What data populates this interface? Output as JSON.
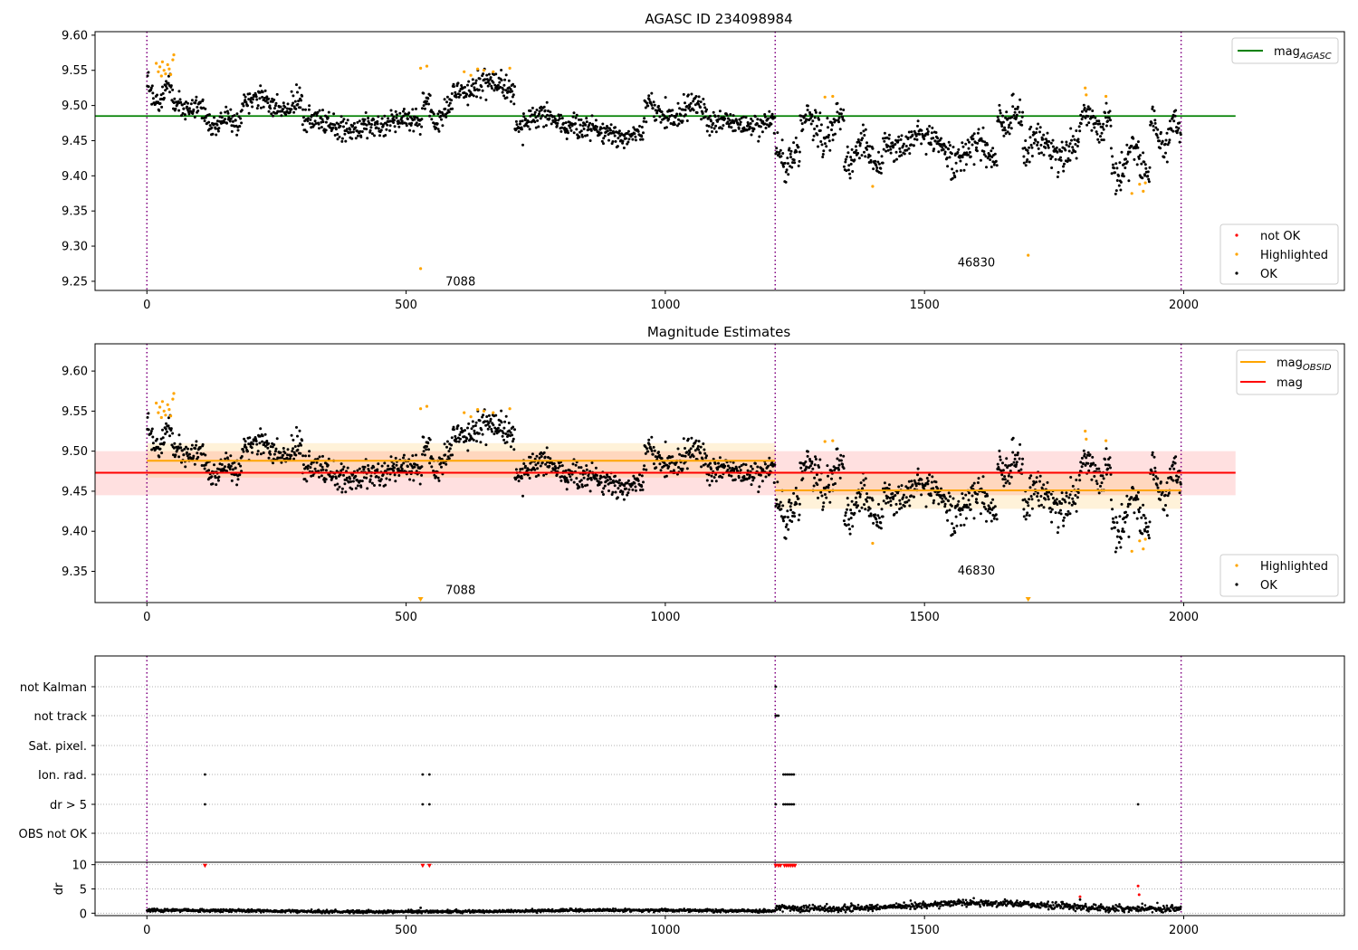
{
  "chart_data": [
    {
      "type": "scatter",
      "title": "AGASC ID 234098984",
      "xlim": [
        -100,
        2310
      ],
      "ylim": [
        9.237,
        9.605
      ],
      "x_ticks": [
        0,
        500,
        1000,
        1500,
        2000
      ],
      "x_tick_labels": [
        "0",
        "500",
        "1000",
        "1500",
        "2000"
      ],
      "y_ticks": [
        9.25,
        9.3,
        9.35,
        9.4,
        9.45,
        9.5,
        9.55,
        9.6
      ],
      "y_tick_labels": [
        "9.25",
        "9.30",
        "9.35",
        "9.40",
        "9.45",
        "9.50",
        "9.55",
        "9.60"
      ],
      "obs_boundaries": [
        0,
        1212,
        1995
      ],
      "obs_labels": [
        {
          "x": 605,
          "y": 9.244,
          "text": "7088"
        },
        {
          "x": 1600,
          "y": 9.271,
          "text": "46830"
        }
      ],
      "lines": [
        {
          "name": "mag",
          "subscript": "AGASC",
          "color": "#008000",
          "x": [
            -100,
            2100
          ],
          "y": [
            9.485,
            9.485
          ]
        }
      ],
      "legend_top": [
        {
          "name": "mag",
          "subscript": "AGASC",
          "kind": "line",
          "color": "#008000"
        }
      ],
      "legend_bottom": [
        {
          "name": "not OK",
          "kind": "marker",
          "color": "#ff0000"
        },
        {
          "name": "Highlighted",
          "kind": "marker",
          "color": "#ffa500"
        },
        {
          "name": "OK",
          "kind": "marker",
          "color": "#000000"
        }
      ],
      "highlighted_points": [
        [
          18,
          9.56
        ],
        [
          22,
          9.548
        ],
        [
          25,
          9.555
        ],
        [
          28,
          9.542
        ],
        [
          30,
          9.562
        ],
        [
          33,
          9.55
        ],
        [
          36,
          9.545
        ],
        [
          40,
          9.558
        ],
        [
          43,
          9.552
        ],
        [
          46,
          9.544
        ],
        [
          50,
          9.565
        ],
        [
          52,
          9.572
        ],
        [
          528,
          9.553
        ],
        [
          540,
          9.556
        ],
        [
          528,
          9.268
        ],
        [
          612,
          9.548
        ],
        [
          625,
          9.543
        ],
        [
          638,
          9.552
        ],
        [
          650,
          9.55
        ],
        [
          668,
          9.548
        ],
        [
          700,
          9.553
        ],
        [
          1308,
          9.512
        ],
        [
          1323,
          9.513
        ],
        [
          1400,
          9.385
        ],
        [
          1700,
          9.287
        ],
        [
          1810,
          9.525
        ],
        [
          1812,
          9.515
        ],
        [
          1850,
          9.513
        ],
        [
          1900,
          9.375
        ],
        [
          1915,
          9.388
        ],
        [
          1922,
          9.378
        ],
        [
          1926,
          9.39
        ]
      ],
      "ok_segments": [
        {
          "x0": 0,
          "x1": 50,
          "center": 9.515,
          "amp": 0.015,
          "noise": 0.008
        },
        {
          "x0": 50,
          "x1": 110,
          "center": 9.495,
          "amp": 0.006,
          "noise": 0.008
        },
        {
          "x0": 110,
          "x1": 180,
          "center": 9.475,
          "amp": 0.008,
          "noise": 0.009
        },
        {
          "x0": 180,
          "x1": 300,
          "center": 9.503,
          "amp": 0.01,
          "noise": 0.008
        },
        {
          "x0": 300,
          "x1": 530,
          "center": 9.473,
          "amp": 0.006,
          "noise": 0.009
        },
        {
          "x0": 530,
          "x1": 590,
          "center": 9.49,
          "amp": 0.015,
          "noise": 0.009
        },
        {
          "x0": 590,
          "x1": 710,
          "center": 9.527,
          "amp": 0.008,
          "noise": 0.009
        },
        {
          "x0": 710,
          "x1": 830,
          "center": 9.478,
          "amp": 0.009,
          "noise": 0.008
        },
        {
          "x0": 830,
          "x1": 960,
          "center": 9.462,
          "amp": 0.006,
          "noise": 0.008
        },
        {
          "x0": 960,
          "x1": 1080,
          "center": 9.492,
          "amp": 0.01,
          "noise": 0.009
        },
        {
          "x0": 1080,
          "x1": 1212,
          "center": 9.475,
          "amp": 0.006,
          "noise": 0.008
        },
        {
          "x0": 1213,
          "x1": 1260,
          "center": 9.425,
          "amp": 0.012,
          "noise": 0.012
        },
        {
          "x0": 1260,
          "x1": 1345,
          "center": 9.47,
          "amp": 0.02,
          "noise": 0.012
        },
        {
          "x0": 1345,
          "x1": 1420,
          "center": 9.43,
          "amp": 0.018,
          "noise": 0.012
        },
        {
          "x0": 1420,
          "x1": 1540,
          "center": 9.45,
          "amp": 0.01,
          "noise": 0.01
        },
        {
          "x0": 1540,
          "x1": 1640,
          "center": 9.435,
          "amp": 0.015,
          "noise": 0.012
        },
        {
          "x0": 1640,
          "x1": 1690,
          "center": 9.48,
          "amp": 0.012,
          "noise": 0.011
        },
        {
          "x0": 1690,
          "x1": 1800,
          "center": 9.44,
          "amp": 0.012,
          "noise": 0.011
        },
        {
          "x0": 1800,
          "x1": 1860,
          "center": 9.475,
          "amp": 0.012,
          "noise": 0.011
        },
        {
          "x0": 1860,
          "x1": 1935,
          "center": 9.42,
          "amp": 0.02,
          "noise": 0.012
        },
        {
          "x0": 1935,
          "x1": 1995,
          "center": 9.462,
          "amp": 0.018,
          "noise": 0.011
        }
      ]
    },
    {
      "type": "scatter",
      "title": "Magnitude Estimates",
      "xlim": [
        -100,
        2310
      ],
      "ylim": [
        9.311,
        9.634
      ],
      "x_ticks": [
        0,
        500,
        1000,
        1500,
        2000
      ],
      "x_tick_labels": [
        "0",
        "500",
        "1000",
        "1500",
        "2000"
      ],
      "y_ticks": [
        9.35,
        9.4,
        9.45,
        9.5,
        9.55,
        9.6
      ],
      "y_tick_labels": [
        "9.35",
        "9.40",
        "9.45",
        "9.50",
        "9.55",
        "9.60"
      ],
      "obs_boundaries": [
        0,
        1212,
        1995
      ],
      "obs_labels": [
        {
          "x": 605,
          "y": 9.322,
          "text": "7088"
        },
        {
          "x": 1600,
          "y": 9.346,
          "text": "46830"
        }
      ],
      "bands": [
        {
          "x0": -100,
          "x1": 2100,
          "y0": 9.445,
          "y1": 9.5,
          "color": "#ff0000",
          "opacity": 0.12
        },
        {
          "x0": 0,
          "x1": 1212,
          "y0": 9.467,
          "y1": 9.51,
          "color": "#ffa500",
          "opacity": 0.15
        },
        {
          "x0": 1212,
          "x1": 1995,
          "y0": 9.428,
          "y1": 9.475,
          "color": "#ffa500",
          "opacity": 0.15
        }
      ],
      "lines": [
        {
          "name": "mag",
          "color": "#ff0000",
          "x": [
            -100,
            2100
          ],
          "y": [
            9.473,
            9.473
          ]
        },
        {
          "name": "mag",
          "subscript": "OBSID",
          "color": "#ffa500",
          "x": [
            0,
            1212
          ],
          "y": [
            9.488,
            9.488
          ]
        },
        {
          "name": "mag",
          "subscript": "OBSID",
          "color": "#ffa500",
          "x": [
            1212,
            1995
          ],
          "y": [
            9.451,
            9.451
          ]
        }
      ],
      "legend_top": [
        {
          "name": "mag",
          "subscript": "OBSID",
          "kind": "line",
          "color": "#ffa500"
        },
        {
          "name": "mag",
          "kind": "line",
          "color": "#ff0000"
        }
      ],
      "legend_bottom": [
        {
          "name": "Highlighted",
          "kind": "marker",
          "color": "#ffa500"
        },
        {
          "name": "OK",
          "kind": "marker",
          "color": "#000000"
        }
      ],
      "offscale_markers": [
        {
          "x": 528,
          "color": "#ffa500"
        },
        {
          "x": 1700,
          "color": "#ffa500"
        }
      ],
      "highlighted_points": [
        [
          18,
          9.56
        ],
        [
          22,
          9.548
        ],
        [
          25,
          9.555
        ],
        [
          28,
          9.542
        ],
        [
          30,
          9.562
        ],
        [
          33,
          9.55
        ],
        [
          36,
          9.545
        ],
        [
          40,
          9.558
        ],
        [
          43,
          9.552
        ],
        [
          46,
          9.544
        ],
        [
          50,
          9.565
        ],
        [
          52,
          9.572
        ],
        [
          528,
          9.553
        ],
        [
          540,
          9.556
        ],
        [
          612,
          9.548
        ],
        [
          625,
          9.543
        ],
        [
          638,
          9.552
        ],
        [
          650,
          9.55
        ],
        [
          668,
          9.548
        ],
        [
          700,
          9.553
        ],
        [
          1308,
          9.512
        ],
        [
          1323,
          9.513
        ],
        [
          1400,
          9.385
        ],
        [
          1810,
          9.525
        ],
        [
          1812,
          9.515
        ],
        [
          1850,
          9.513
        ],
        [
          1900,
          9.375
        ],
        [
          1915,
          9.388
        ],
        [
          1922,
          9.378
        ],
        [
          1926,
          9.39
        ]
      ],
      "ok_segments": "same_as_panel_1"
    },
    {
      "type": "flags",
      "flag_rows": [
        "not Kalman",
        "not track",
        "Sat. pixel.",
        "Ion. rad.",
        "dr > 5",
        "OBS not OK"
      ],
      "xlim": [
        -100,
        2310
      ],
      "x_ticks": [
        0,
        500,
        1000,
        1500,
        2000
      ],
      "x_tick_labels": [
        "0",
        "500",
        "1000",
        "1500",
        "2000"
      ],
      "obs_boundaries": [
        0,
        1212,
        1995
      ],
      "flags": {
        "not Kalman": [
          1213
        ],
        "not track": [
          1213,
          1215,
          1218
        ],
        "Sat. pixel.": [],
        "Ion. rad.": [
          112,
          532,
          545,
          1228,
          1232,
          1236,
          1240,
          1244,
          1248
        ],
        "dr > 5": [
          112,
          532,
          545,
          1213,
          1228,
          1232,
          1236,
          1240,
          1244,
          1248,
          1912
        ],
        "OBS not OK": []
      },
      "dr_panel": {
        "ylabel": "dr",
        "ylim": [
          -0.5,
          10.5
        ],
        "y_ticks": [
          0,
          5,
          10
        ],
        "y_tick_labels": [
          "0",
          "5",
          "10"
        ],
        "dr_segments": [
          {
            "x0": 0,
            "x1": 1212,
            "center": 0.45,
            "amp": 0.15,
            "noise": 0.15
          },
          {
            "x0": 1213,
            "x1": 1995,
            "center": 1.5,
            "amp": 0.6,
            "noise": 0.35
          }
        ],
        "dr_extra_black": [
          [
            528,
            1.1
          ],
          [
            1220,
            1.5
          ],
          [
            1800,
            2.8
          ]
        ],
        "dr_red_points": [
          [
            112,
            9.8
          ],
          [
            532,
            9.8
          ],
          [
            545,
            9.8
          ],
          [
            1213,
            9.8
          ],
          [
            1218,
            9.8
          ],
          [
            1222,
            9.8
          ],
          [
            1230,
            9.8
          ],
          [
            1234,
            9.8
          ],
          [
            1238,
            9.8
          ],
          [
            1242,
            9.8
          ],
          [
            1246,
            9.8
          ],
          [
            1250,
            9.8
          ],
          [
            1800,
            3.4
          ],
          [
            1912,
            5.6
          ],
          [
            1914,
            3.8
          ]
        ]
      }
    }
  ]
}
